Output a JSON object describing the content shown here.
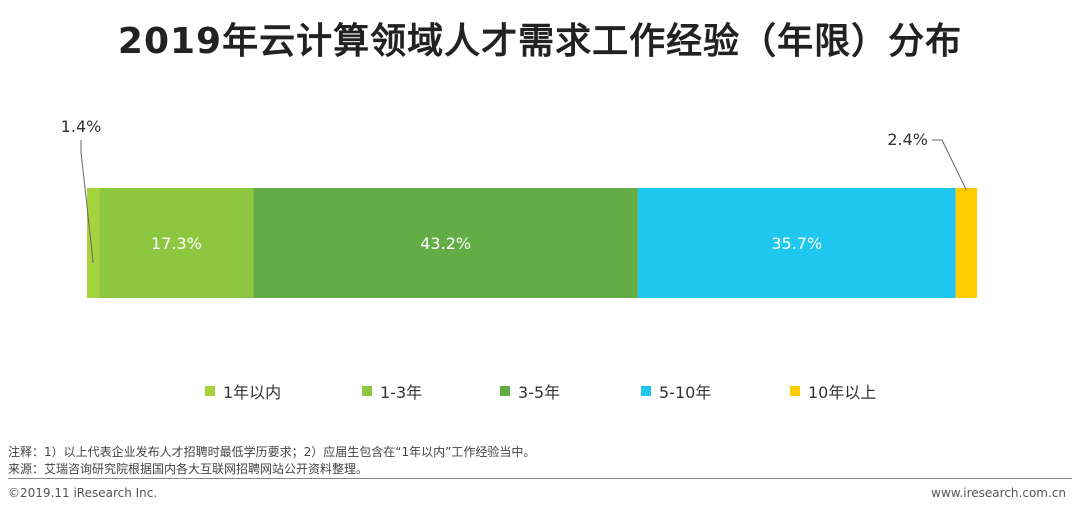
{
  "page": {
    "title": "2019年云计算领域人才需求工作经验（年限）分布"
  },
  "chart_data": {
    "type": "bar",
    "orientation": "horizontal-stacked-100",
    "title": "2019年云计算领域人才需求工作经验（年限）分布",
    "series": [
      {
        "name": "1年以内",
        "value": 1.4,
        "label": "1.4%",
        "color": "#a4d33c",
        "label_position": "outside-top-left"
      },
      {
        "name": "1-3年",
        "value": 17.3,
        "label": "17.3%",
        "color": "#8dc63f",
        "label_position": "inside"
      },
      {
        "name": "3-5年",
        "value": 43.2,
        "label": "43.2%",
        "color": "#64ad46",
        "label_position": "inside"
      },
      {
        "name": "5-10年",
        "value": 35.7,
        "label": "35.7%",
        "color": "#1fc6ee",
        "label_position": "inside"
      },
      {
        "name": "10年以上",
        "value": 2.4,
        "label": "2.4%",
        "color": "#ffcc00",
        "label_position": "outside-top-right"
      }
    ],
    "total": 100,
    "legend_position": "bottom"
  },
  "notes": {
    "note": "注释：1）以上代表企业发布人才招聘时最低学历要求；2）应届生包含在“1年以内”工作经验当中。",
    "source": "来源：艾瑞咨询研究院根据国内各大互联网招聘网站公开资料整理。"
  },
  "footer": {
    "copyright": "©2019.11 iResearch Inc.",
    "website": "www.iresearch.com.cn"
  }
}
